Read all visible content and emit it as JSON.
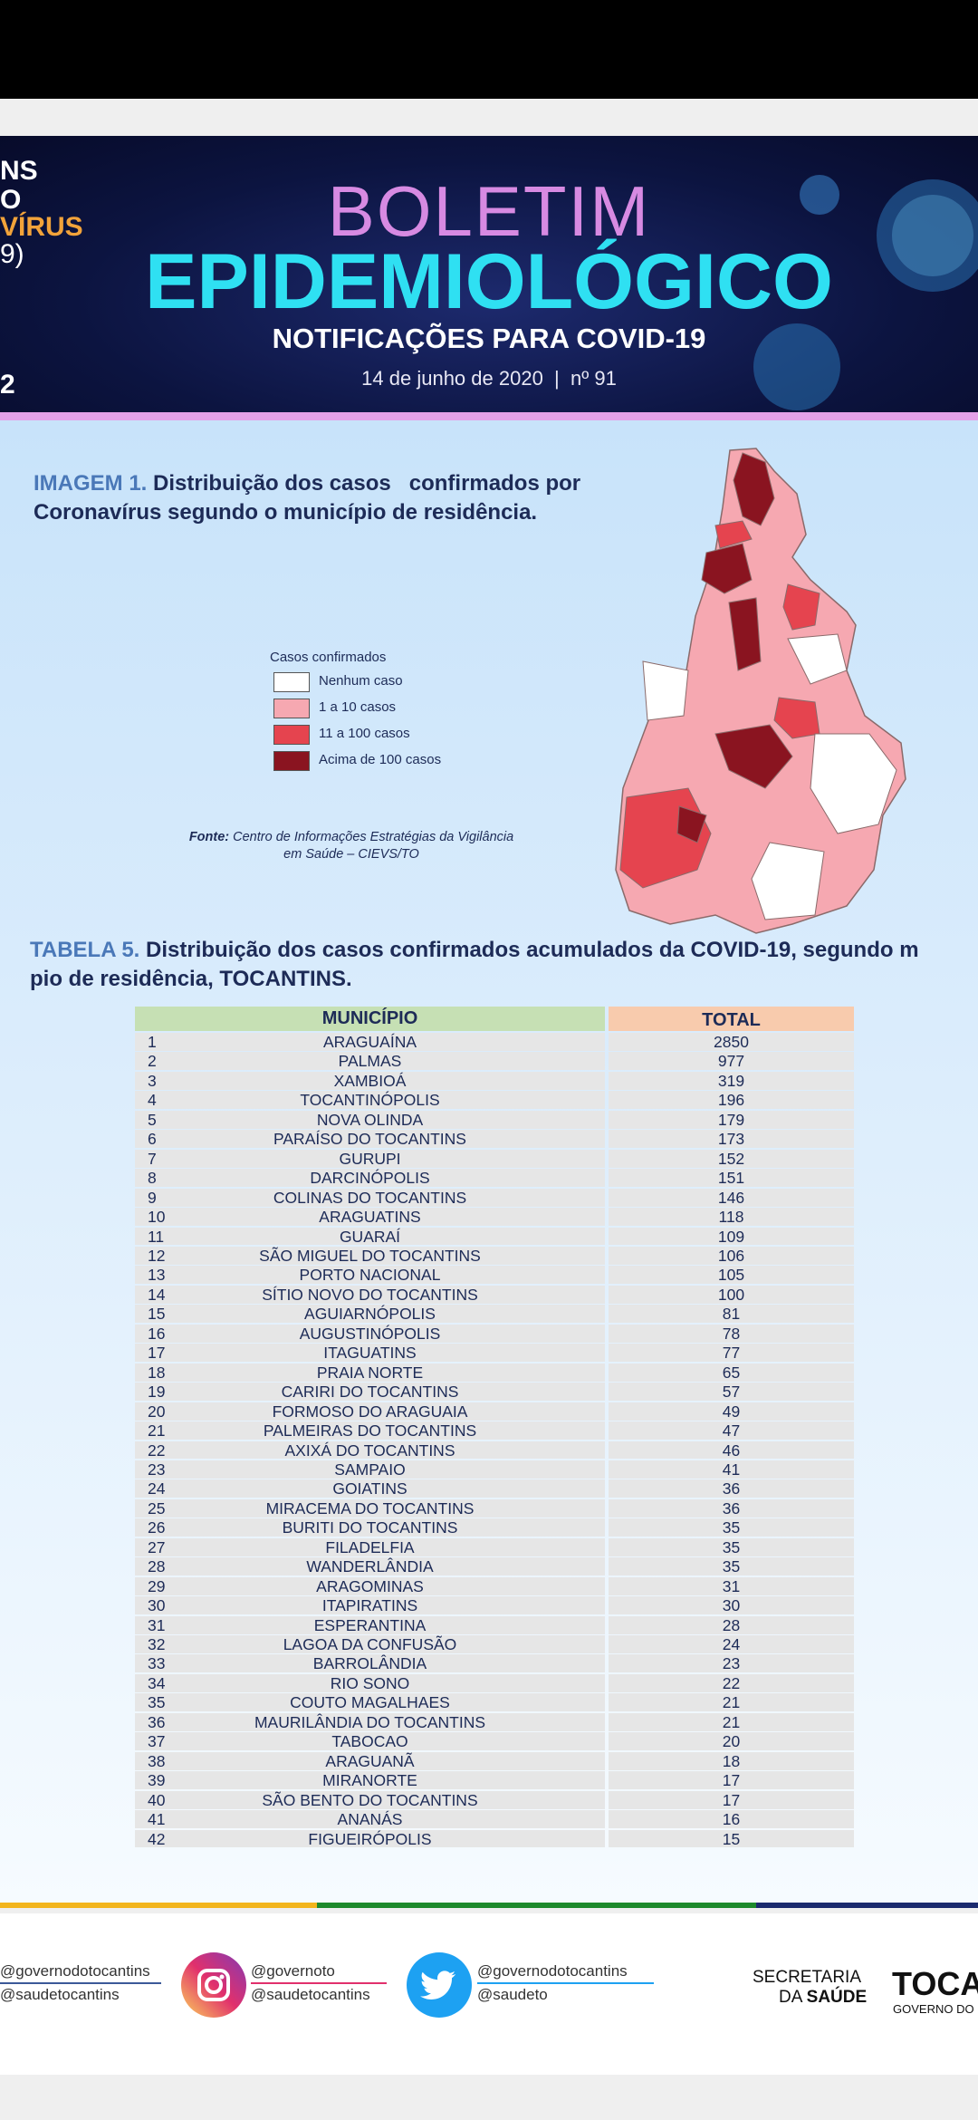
{
  "header": {
    "left_fragments": [
      "NS",
      "O",
      "VÍRUS",
      "9)",
      "2"
    ],
    "title": "BOLETIM",
    "subtitle": "EPIDEMIOLÓGICO",
    "tagline": "NOTIFICAÇÕES PARA COVID-19",
    "date": "14 de junho de 2020  |  nº 91"
  },
  "figure": {
    "label": "IMAGEM 1.",
    "caption_line1": "Distribuição dos casos   confirmados por",
    "caption_line2": "Coronavírus segundo o município de residência.",
    "legend": {
      "title": "Casos confirmados",
      "items": [
        {
          "label": "Nenhum caso",
          "color": "#ffffff"
        },
        {
          "label": "1 a 10 casos",
          "color": "#f6a8b1"
        },
        {
          "label": "11 a 100 casos",
          "color": "#e5444f"
        },
        {
          "label": "Acima de 100 casos",
          "color": "#8a1420"
        }
      ]
    },
    "source_label": "Fonte:",
    "source_line1": "Centro de Informações Estratégias da Vigilância",
    "source_line2": "em Saúde – CIEVS/TO"
  },
  "table": {
    "label": "TABELA 5.",
    "title_line1": "Distribuição dos casos confirmados acumulados da COVID-19, segundo m",
    "title_line2": "pio de residência, TOCANTINS.",
    "columns": [
      "MUNICÍPIO",
      "TOTAL"
    ],
    "rows": [
      [
        1,
        "ARAGUAÍNA",
        2850
      ],
      [
        2,
        "PALMAS",
        977
      ],
      [
        3,
        "XAMBIOÁ",
        319
      ],
      [
        4,
        "TOCANTINÓPOLIS",
        196
      ],
      [
        5,
        "NOVA OLINDA",
        179
      ],
      [
        6,
        "PARAÍSO DO TOCANTINS",
        173
      ],
      [
        7,
        "GURUPI",
        152
      ],
      [
        8,
        "DARCINÓPOLIS",
        151
      ],
      [
        9,
        "COLINAS DO TOCANTINS",
        146
      ],
      [
        10,
        "ARAGUATINS",
        118
      ],
      [
        11,
        "GUARAÍ",
        109
      ],
      [
        12,
        "SÃO MIGUEL DO TOCANTINS",
        106
      ],
      [
        13,
        "PORTO NACIONAL",
        105
      ],
      [
        14,
        "SÍTIO NOVO DO TOCANTINS",
        100
      ],
      [
        15,
        "AGUIARNÓPOLIS",
        81
      ],
      [
        16,
        "AUGUSTINÓPOLIS",
        78
      ],
      [
        17,
        "ITAGUATINS",
        77
      ],
      [
        18,
        "PRAIA NORTE",
        65
      ],
      [
        19,
        "CARIRI DO TOCANTINS",
        57
      ],
      [
        20,
        "FORMOSO DO ARAGUAIA",
        49
      ],
      [
        21,
        "PALMEIRAS DO TOCANTINS",
        47
      ],
      [
        22,
        "AXIXÁ DO TOCANTINS",
        46
      ],
      [
        23,
        "SAMPAIO",
        41
      ],
      [
        24,
        "GOIATINS",
        36
      ],
      [
        25,
        "MIRACEMA DO TOCANTINS",
        36
      ],
      [
        26,
        "BURITI DO TOCANTINS",
        35
      ],
      [
        27,
        "FILADELFIA",
        35
      ],
      [
        28,
        "WANDERLÂNDIA",
        35
      ],
      [
        29,
        "ARAGOMINAS",
        31
      ],
      [
        30,
        "ITAPIRATINS",
        30
      ],
      [
        31,
        "ESPERANTINA",
        28
      ],
      [
        32,
        "LAGOA DA CONFUSÃO",
        24
      ],
      [
        33,
        "BARROLÂNDIA",
        23
      ],
      [
        34,
        "RIO SONO",
        22
      ],
      [
        35,
        "COUTO MAGALHAES",
        21
      ],
      [
        36,
        "MAURILÂNDIA DO TOCANTINS",
        21
      ],
      [
        37,
        "TABOCAO",
        20
      ],
      [
        38,
        "ARAGUANÃ",
        18
      ],
      [
        39,
        "MIRANORTE",
        17
      ],
      [
        40,
        "SÃO BENTO DO TOCANTINS",
        17
      ],
      [
        41,
        "ANANÁS",
        16
      ],
      [
        42,
        "FIGUEIRÓPOLIS",
        15
      ]
    ]
  },
  "footer": {
    "facebook": [
      "@governodotocantins",
      "@saudetocantins"
    ],
    "instagram": [
      "@governoto",
      "@saudetocantins"
    ],
    "twitter": [
      "@governodotocantins",
      "@saudeto"
    ],
    "secretaria": [
      "SECRETARIA",
      "DA",
      "SAÚDE"
    ],
    "governo": [
      "TOCAN",
      "GOVERNO DO"
    ]
  }
}
